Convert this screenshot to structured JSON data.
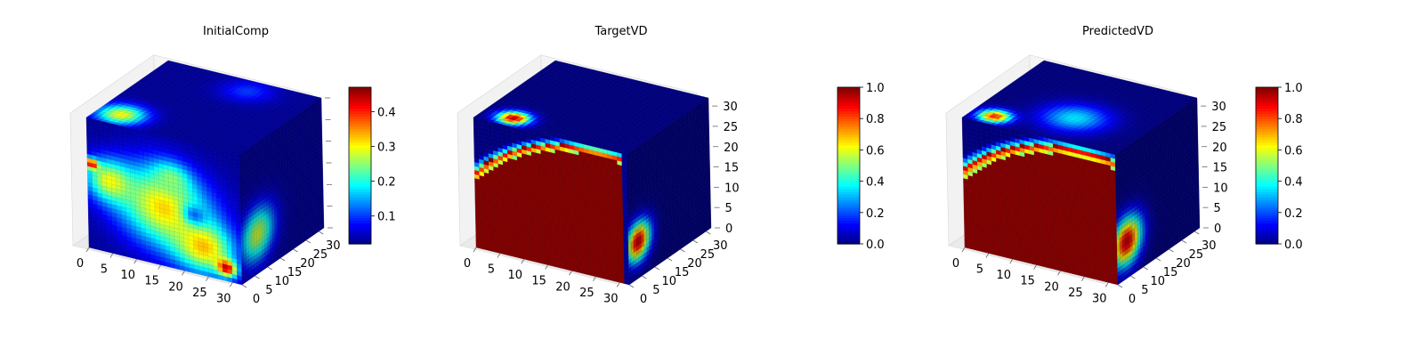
{
  "figure": {
    "panels": [
      {
        "title": "InitialComp"
      },
      {
        "title": "TargetVD"
      },
      {
        "title": "PredictedVD"
      }
    ]
  },
  "colormap": [
    "#00007f",
    "#0000ff",
    "#007fff",
    "#00ffff",
    "#7fff7f",
    "#ffff00",
    "#ff7f00",
    "#ff0000",
    "#7f0000"
  ],
  "chart_data": [
    {
      "type": "heatmap",
      "subtype": "3d-voxel-cube",
      "title": "InitialComp",
      "axes": {
        "x": {
          "ticks": [
            0,
            5,
            10,
            15,
            20,
            25,
            30
          ],
          "range": [
            0,
            32
          ]
        },
        "y": {
          "ticks": [
            0,
            5,
            10,
            15,
            20,
            25,
            30
          ],
          "range": [
            0,
            32
          ]
        },
        "z": {
          "ticks": [],
          "range": [
            0,
            32
          ]
        }
      },
      "colorbar": {
        "ticks": [
          0.1,
          0.2,
          0.3,
          0.4
        ],
        "range": [
          0.02,
          0.47
        ],
        "colormap": "jet"
      },
      "field": {
        "background": 0.03,
        "front_face": [
          {
            "x": 0.5,
            "y": 0.55,
            "r": 0.38,
            "value": 0.32
          },
          {
            "x": 0.15,
            "y": 0.45,
            "r": 0.2,
            "value": 0.3
          },
          {
            "x": 0.75,
            "y": 0.78,
            "r": 0.25,
            "value": 0.33
          },
          {
            "x": 0.9,
            "y": 0.9,
            "r": 0.08,
            "value": 0.45
          },
          {
            "x": 0.03,
            "y": 0.35,
            "r": 0.05,
            "value": 0.46
          },
          {
            "x": 0.55,
            "y": 0.32,
            "r": 0.15,
            "value": 0.25
          },
          {
            "x": 0.7,
            "y": 0.55,
            "r": 0.1,
            "value": 0.12
          }
        ],
        "top_face": [
          {
            "x": 0.15,
            "y": 0.15,
            "r": 0.18,
            "value": 0.3
          },
          {
            "x": 0.6,
            "y": 0.85,
            "r": 0.2,
            "value": 0.1
          }
        ],
        "side_face": [
          {
            "x": 0.2,
            "y": 0.7,
            "r": 0.25,
            "value": 0.28
          }
        ]
      }
    },
    {
      "type": "heatmap",
      "subtype": "3d-voxel-cube",
      "title": "TargetVD",
      "axes": {
        "x": {
          "ticks": [
            0,
            5,
            10,
            15,
            20,
            25,
            30
          ],
          "range": [
            0,
            32
          ]
        },
        "y": {
          "ticks": [
            0,
            5,
            10,
            15,
            20,
            25,
            30
          ],
          "range": [
            0,
            32
          ]
        },
        "z": {
          "ticks": [
            0,
            5,
            10,
            15,
            20,
            25,
            30
          ],
          "range": [
            0,
            32
          ]
        }
      },
      "colorbar": {
        "ticks": [
          0.0,
          0.2,
          0.4,
          0.6,
          0.8,
          1.0
        ],
        "range": [
          0,
          1
        ],
        "colormap": "jet"
      },
      "field": {
        "background": 0.0,
        "front_face_arc": {
          "cx": 0.8,
          "cy": 1.02,
          "r": 1.0,
          "inside": 1.0,
          "band": 0.05,
          "clip_x": 0.96
        },
        "top_face": [
          {
            "x": 0.2,
            "y": 0.12,
            "r": 0.12,
            "value": 0.95
          }
        ],
        "side_face": [
          {
            "x": 0.12,
            "y": 0.72,
            "r": 0.18,
            "value": 0.95
          }
        ]
      }
    },
    {
      "type": "heatmap",
      "subtype": "3d-voxel-cube",
      "title": "PredictedVD",
      "axes": {
        "x": {
          "ticks": [
            0,
            5,
            10,
            15,
            20,
            25,
            30
          ],
          "range": [
            0,
            32
          ]
        },
        "y": {
          "ticks": [
            0,
            5,
            10,
            15,
            20,
            25,
            30
          ],
          "range": [
            0,
            32
          ]
        },
        "z": {
          "ticks": [
            0,
            5,
            10,
            15,
            20,
            25,
            30
          ],
          "range": [
            0,
            32
          ]
        }
      },
      "colorbar": {
        "ticks": [
          0.0,
          0.2,
          0.4,
          0.6,
          0.8,
          1.0
        ],
        "range": [
          0,
          1
        ],
        "colormap": "jet"
      },
      "field": {
        "background": 0.0,
        "front_face_arc": {
          "cx": 0.78,
          "cy": 1.05,
          "r": 1.02,
          "inside": 1.0,
          "band": 0.06,
          "clip_x": 1.0
        },
        "top_face": [
          {
            "x": 0.15,
            "y": 0.12,
            "r": 0.12,
            "value": 0.85
          },
          {
            "x": 0.55,
            "y": 0.35,
            "r": 0.25,
            "value": 0.35
          }
        ],
        "side_face": [
          {
            "x": 0.12,
            "y": 0.72,
            "r": 0.22,
            "value": 0.95
          }
        ]
      }
    }
  ]
}
